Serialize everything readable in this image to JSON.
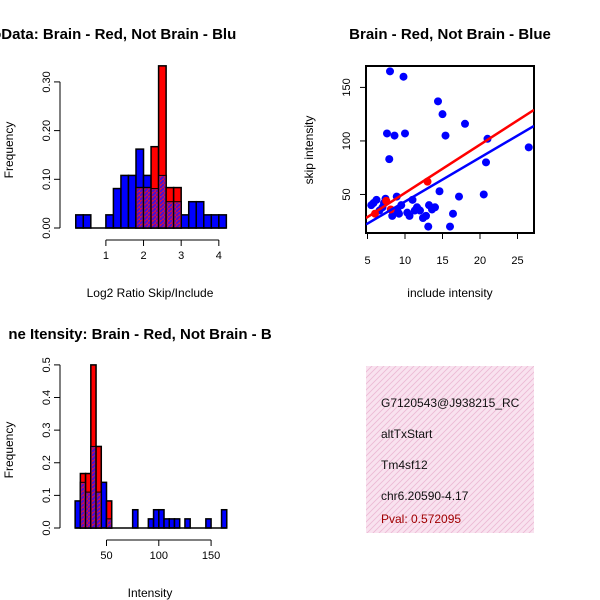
{
  "chart_data": [
    {
      "id": "hist_ratio",
      "type": "histogram",
      "title": "RatioData: Brain - Red, Not Brain - Blu",
      "xlabel": "Log2 Ratio Skip/Include",
      "ylabel": "Frequency",
      "xlim": [
        0.1,
        4.35
      ],
      "ylim": [
        0,
        0.345
      ],
      "xticks": [
        "1",
        "2",
        "3",
        "4"
      ],
      "yticks": [
        "0.00",
        "0.10",
        "0.20",
        "0.30"
      ],
      "bins": [
        {
          "x0": 0.2,
          "x1": 0.4,
          "blue": 0.027,
          "red": 0.0
        },
        {
          "x0": 0.4,
          "x1": 0.6,
          "blue": 0.027,
          "red": 0.0
        },
        {
          "x0": 0.6,
          "x1": 0.8,
          "blue": 0.0,
          "red": 0.0
        },
        {
          "x0": 0.8,
          "x1": 1.0,
          "blue": 0.0,
          "red": 0.0
        },
        {
          "x0": 1.0,
          "x1": 1.2,
          "blue": 0.027,
          "red": 0.0
        },
        {
          "x0": 1.2,
          "x1": 1.4,
          "blue": 0.081,
          "red": 0.0
        },
        {
          "x0": 1.4,
          "x1": 1.6,
          "blue": 0.108,
          "red": 0.0
        },
        {
          "x0": 1.6,
          "x1": 1.8,
          "blue": 0.108,
          "red": 0.0
        },
        {
          "x0": 1.8,
          "x1": 2.0,
          "blue": 0.162,
          "red": 0.083
        },
        {
          "x0": 2.0,
          "x1": 2.2,
          "blue": 0.108,
          "red": 0.083
        },
        {
          "x0": 2.2,
          "x1": 2.4,
          "blue": 0.081,
          "red": 0.167
        },
        {
          "x0": 2.4,
          "x1": 2.6,
          "blue": 0.108,
          "red": 0.333
        },
        {
          "x0": 2.6,
          "x1": 2.8,
          "blue": 0.054,
          "red": 0.083
        },
        {
          "x0": 2.8,
          "x1": 3.0,
          "blue": 0.054,
          "red": 0.083
        },
        {
          "x0": 3.0,
          "x1": 3.2,
          "blue": 0.027,
          "red": 0.0
        },
        {
          "x0": 3.2,
          "x1": 3.4,
          "blue": 0.054,
          "red": 0.0
        },
        {
          "x0": 3.4,
          "x1": 3.6,
          "blue": 0.054,
          "red": 0.0
        },
        {
          "x0": 3.6,
          "x1": 3.8,
          "blue": 0.027,
          "red": 0.0
        },
        {
          "x0": 3.8,
          "x1": 4.0,
          "blue": 0.027,
          "red": 0.0
        },
        {
          "x0": 4.0,
          "x1": 4.2,
          "blue": 0.027,
          "red": 0.0
        }
      ]
    },
    {
      "id": "scatter",
      "type": "scatter",
      "title": "Brain - Red, Not Brain - Blue",
      "xlabel": "include intensity",
      "ylabel": "skip intensity",
      "xlim": [
        4.8,
        27.2
      ],
      "ylim": [
        14,
        170
      ],
      "xticks": [
        "5",
        "10",
        "15",
        "20",
        "25"
      ],
      "yticks": [
        "50",
        "100",
        "150"
      ],
      "blue_points": [
        [
          5.5,
          40
        ],
        [
          5.8,
          42
        ],
        [
          6.2,
          45
        ],
        [
          6.6,
          35
        ],
        [
          7.0,
          38
        ],
        [
          7.2,
          42
        ],
        [
          7.4,
          46
        ],
        [
          7.6,
          107
        ],
        [
          7.9,
          83
        ],
        [
          8.0,
          165
        ],
        [
          8.3,
          30
        ],
        [
          8.6,
          105
        ],
        [
          8.9,
          48
        ],
        [
          9.0,
          35
        ],
        [
          9.2,
          32
        ],
        [
          9.5,
          40
        ],
        [
          9.8,
          160
        ],
        [
          10.0,
          107
        ],
        [
          10.3,
          33
        ],
        [
          10.6,
          30
        ],
        [
          11.0,
          45
        ],
        [
          11.3,
          35
        ],
        [
          11.6,
          38
        ],
        [
          12.0,
          35
        ],
        [
          12.4,
          28
        ],
        [
          12.8,
          30
        ],
        [
          13.2,
          40
        ],
        [
          13.6,
          36
        ],
        [
          14.0,
          38
        ],
        [
          14.4,
          137
        ],
        [
          14.6,
          53
        ],
        [
          15.0,
          125
        ],
        [
          15.4,
          105
        ],
        [
          16.0,
          20
        ],
        [
          16.4,
          32
        ],
        [
          17.2,
          48
        ],
        [
          18.0,
          116
        ],
        [
          20.5,
          50
        ],
        [
          20.8,
          80
        ],
        [
          21.0,
          102
        ],
        [
          26.5,
          94
        ],
        [
          13.1,
          20
        ]
      ],
      "red_points": [
        [
          6.0,
          32
        ],
        [
          7.5,
          44
        ],
        [
          8.1,
          36
        ],
        [
          13.0,
          62
        ]
      ],
      "blue_line": [
        [
          4.8,
          22
        ],
        [
          27.2,
          114
        ]
      ],
      "red_line": [
        [
          4.8,
          28
        ],
        [
          27.2,
          129
        ]
      ]
    },
    {
      "id": "hist_intensity",
      "type": "histogram",
      "title": "ne Itensity: Brain - Red, Not Brain - B",
      "xlabel": "Intensity",
      "ylabel": "Frequency",
      "xlim": [
        17,
        170
      ],
      "ylim": [
        0,
        0.515
      ],
      "xticks": [
        "50",
        "100",
        "150"
      ],
      "yticks": [
        "0.0",
        "0.1",
        "0.2",
        "0.3",
        "0.4",
        "0.5"
      ],
      "bins": [
        {
          "x0": 20,
          "x1": 25,
          "blue": 0.083,
          "red": 0.0
        },
        {
          "x0": 25,
          "x1": 30,
          "blue": 0.14,
          "red": 0.167
        },
        {
          "x0": 30,
          "x1": 35,
          "blue": 0.11,
          "red": 0.167
        },
        {
          "x0": 35,
          "x1": 40,
          "blue": 0.25,
          "red": 0.5
        },
        {
          "x0": 40,
          "x1": 45,
          "blue": 0.11,
          "red": 0.25
        },
        {
          "x0": 45,
          "x1": 50,
          "blue": 0.14,
          "red": 0.0
        },
        {
          "x0": 50,
          "x1": 55,
          "blue": 0.028,
          "red": 0.083
        },
        {
          "x0": 75,
          "x1": 80,
          "blue": 0.056,
          "red": 0.0
        },
        {
          "x0": 90,
          "x1": 95,
          "blue": 0.028,
          "red": 0.0
        },
        {
          "x0": 95,
          "x1": 100,
          "blue": 0.056,
          "red": 0.0
        },
        {
          "x0": 100,
          "x1": 105,
          "blue": 0.056,
          "red": 0.0
        },
        {
          "x0": 105,
          "x1": 110,
          "blue": 0.028,
          "red": 0.0
        },
        {
          "x0": 110,
          "x1": 115,
          "blue": 0.028,
          "red": 0.0
        },
        {
          "x0": 115,
          "x1": 120,
          "blue": 0.028,
          "red": 0.0
        },
        {
          "x0": 125,
          "x1": 130,
          "blue": 0.028,
          "red": 0.0
        },
        {
          "x0": 145,
          "x1": 150,
          "blue": 0.028,
          "red": 0.0
        },
        {
          "x0": 160,
          "x1": 165,
          "blue": 0.056,
          "red": 0.0
        }
      ]
    }
  ],
  "info_panel": {
    "probe_id": "G7120543@J938215_RC",
    "event_type": "altTxStart",
    "gene": "Tm4sf12",
    "location": "chr6.20590-4.17",
    "pval": "Pval: 0.572095"
  },
  "colors": {
    "blue": "#0000ff",
    "red": "#ff0000",
    "purple": "#a020a0",
    "pval_text": "#a00000",
    "panel_bg": "#f7d8ea"
  }
}
